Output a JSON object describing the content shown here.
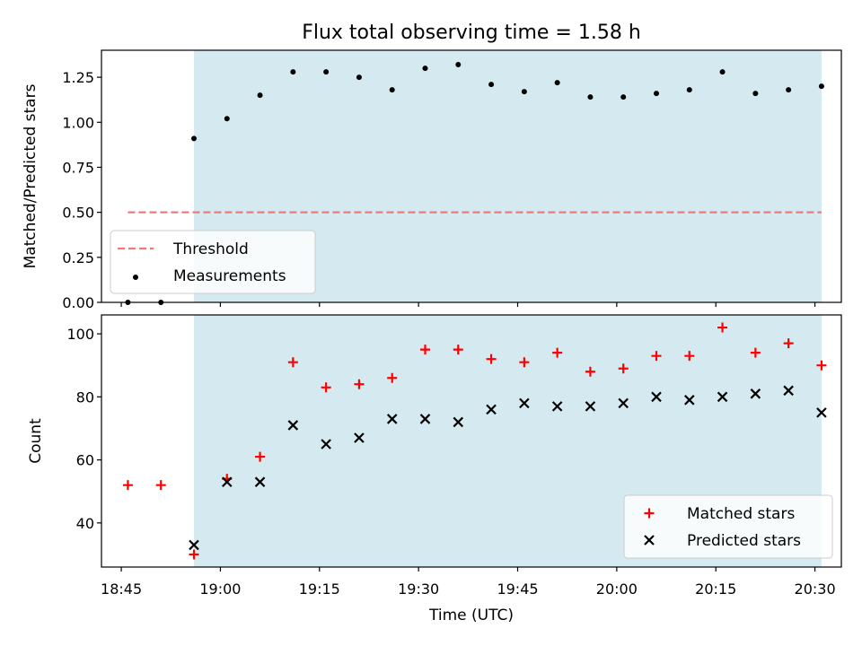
{
  "chart_data": [
    {
      "type": "scatter",
      "title": "Flux total observing time = 1.58 h",
      "ylabel": "Matched/Predicted stars",
      "xlabel": "",
      "xlim": [
        "18:42",
        "20:34"
      ],
      "ylim": [
        0,
        1.4
      ],
      "yticks": [
        "0.00",
        "0.25",
        "0.50",
        "0.75",
        "1.00",
        "1.25"
      ],
      "grid": false,
      "legend_position": "lower-left",
      "shaded_span": [
        "18:56",
        "20:31"
      ],
      "shaded_color": "#d4eaf0",
      "series": [
        {
          "name": "Threshold",
          "kind": "dashed-line",
          "color": "#f07878",
          "points": [
            [
              "18:46",
              0.5
            ],
            [
              "20:31",
              0.5
            ]
          ]
        },
        {
          "name": "Measurements",
          "kind": "dot",
          "color": "#000000",
          "points": [
            [
              "18:46",
              0.0
            ],
            [
              "18:51",
              0.0
            ],
            [
              "18:56",
              0.91
            ],
            [
              "19:01",
              1.02
            ],
            [
              "19:06",
              1.15
            ],
            [
              "19:11",
              1.28
            ],
            [
              "19:16",
              1.28
            ],
            [
              "19:21",
              1.25
            ],
            [
              "19:26",
              1.18
            ],
            [
              "19:31",
              1.3
            ],
            [
              "19:36",
              1.32
            ],
            [
              "19:41",
              1.21
            ],
            [
              "19:46",
              1.17
            ],
            [
              "19:51",
              1.22
            ],
            [
              "19:56",
              1.14
            ],
            [
              "20:01",
              1.14
            ],
            [
              "20:06",
              1.16
            ],
            [
              "20:11",
              1.18
            ],
            [
              "20:16",
              1.28
            ],
            [
              "20:21",
              1.16
            ],
            [
              "20:26",
              1.18
            ],
            [
              "20:31",
              1.2
            ]
          ]
        }
      ]
    },
    {
      "type": "scatter",
      "title": "",
      "ylabel": "Count",
      "xlabel": "Time (UTC)",
      "xlim": [
        "18:42",
        "20:34"
      ],
      "ylim": [
        26,
        106
      ],
      "yticks": [
        "40",
        "60",
        "80",
        "100"
      ],
      "xticks": [
        "18:45",
        "19:00",
        "19:15",
        "19:30",
        "19:45",
        "20:00",
        "20:15",
        "20:30"
      ],
      "grid": false,
      "legend_position": "lower-right",
      "shaded_span": [
        "18:56",
        "20:31"
      ],
      "shaded_color": "#d4eaf0",
      "series": [
        {
          "name": "Matched stars",
          "kind": "plus",
          "color": "#ff0000",
          "points": [
            [
              "18:46",
              52
            ],
            [
              "18:51",
              52
            ],
            [
              "18:56",
              30
            ],
            [
              "19:01",
              54
            ],
            [
              "19:06",
              61
            ],
            [
              "19:11",
              91
            ],
            [
              "19:16",
              83
            ],
            [
              "19:21",
              84
            ],
            [
              "19:26",
              86
            ],
            [
              "19:31",
              95
            ],
            [
              "19:36",
              95
            ],
            [
              "19:41",
              92
            ],
            [
              "19:46",
              91
            ],
            [
              "19:51",
              94
            ],
            [
              "19:56",
              88
            ],
            [
              "20:01",
              89
            ],
            [
              "20:06",
              93
            ],
            [
              "20:11",
              93
            ],
            [
              "20:16",
              102
            ],
            [
              "20:21",
              94
            ],
            [
              "20:26",
              97
            ],
            [
              "20:31",
              90
            ]
          ]
        },
        {
          "name": "Predicted stars",
          "kind": "x",
          "color": "#000000",
          "points": [
            [
              "18:56",
              33
            ],
            [
              "19:01",
              53
            ],
            [
              "19:06",
              53
            ],
            [
              "19:11",
              71
            ],
            [
              "19:16",
              65
            ],
            [
              "19:21",
              67
            ],
            [
              "19:26",
              73
            ],
            [
              "19:31",
              73
            ],
            [
              "19:36",
              72
            ],
            [
              "19:41",
              76
            ],
            [
              "19:46",
              78
            ],
            [
              "19:51",
              77
            ],
            [
              "19:56",
              77
            ],
            [
              "20:01",
              78
            ],
            [
              "20:06",
              80
            ],
            [
              "20:11",
              79
            ],
            [
              "20:16",
              80
            ],
            [
              "20:21",
              81
            ],
            [
              "20:26",
              82
            ],
            [
              "20:31",
              75
            ]
          ]
        }
      ]
    }
  ]
}
